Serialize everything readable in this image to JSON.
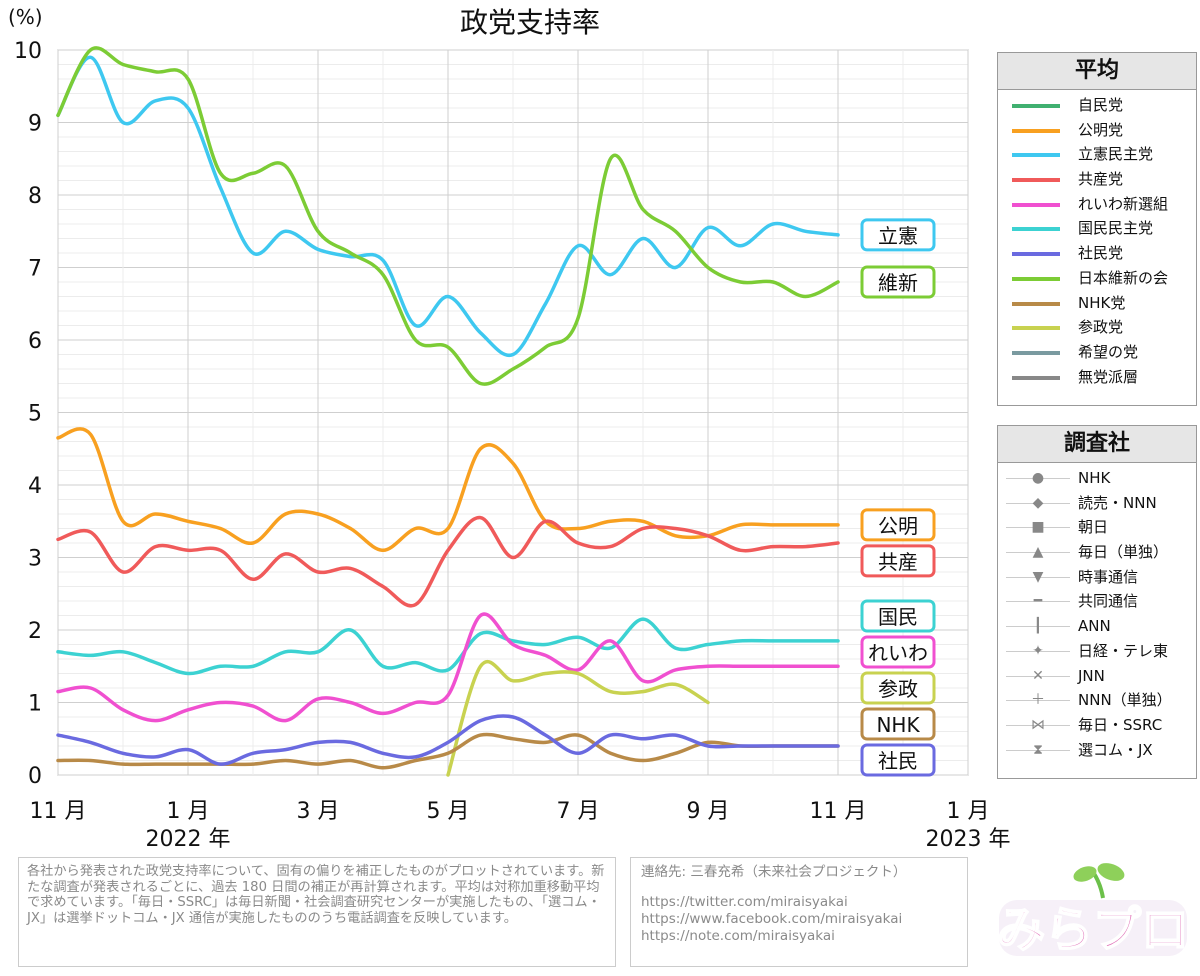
{
  "chart_data": {
    "type": "line",
    "title": "政党支持率",
    "ylabel": "(%)",
    "ylim": [
      0,
      10
    ],
    "yticks": [
      "0",
      "1",
      "2",
      "3",
      "4",
      "5",
      "6",
      "7",
      "8",
      "9",
      "10"
    ],
    "x_months": [
      "11 月",
      "1 月",
      "3 月",
      "5 月",
      "7 月",
      "9 月",
      "11 月",
      "1 月"
    ],
    "x_years": [
      "2022 年",
      "2023 年"
    ],
    "x": [
      0,
      0.5,
      1,
      1.5,
      2,
      2.5,
      3,
      3.5,
      4,
      4.5,
      5,
      5.5,
      6,
      6.5,
      7,
      7.5,
      8,
      8.5,
      9,
      9.5,
      10,
      10.5,
      11,
      11.5,
      12
    ],
    "grid": true,
    "series": [
      {
        "name": "立憲民主党",
        "color": "#3ec8f0",
        "tag": "立憲",
        "y": [
          9.1,
          9.9,
          9.0,
          9.3,
          9.2,
          8.1,
          7.2,
          7.5,
          7.25,
          7.15,
          7.1,
          6.2,
          6.6,
          6.1,
          5.8,
          6.5,
          7.3,
          6.9,
          7.4,
          7.0,
          7.55,
          7.3,
          7.6,
          7.5,
          7.45
        ]
      },
      {
        "name": "日本維新の会",
        "color": "#7ccc35",
        "tag": "維新",
        "y": [
          9.1,
          10.0,
          9.8,
          9.7,
          9.6,
          8.3,
          8.3,
          8.4,
          7.5,
          7.2,
          6.9,
          6.0,
          5.9,
          5.4,
          5.6,
          5.9,
          6.3,
          8.5,
          7.8,
          7.5,
          7.0,
          6.8,
          6.8,
          6.6,
          6.8
        ]
      },
      {
        "name": "公明党",
        "color": "#f8a020",
        "tag": "公明",
        "y": [
          4.65,
          4.7,
          3.5,
          3.6,
          3.5,
          3.4,
          3.2,
          3.6,
          3.6,
          3.4,
          3.1,
          3.4,
          3.4,
          4.5,
          4.3,
          3.5,
          3.4,
          3.5,
          3.5,
          3.3,
          3.3,
          3.45,
          3.45,
          3.45,
          3.45
        ]
      },
      {
        "name": "共産党",
        "color": "#f05a5a",
        "tag": "共産",
        "y": [
          3.25,
          3.35,
          2.8,
          3.15,
          3.1,
          3.1,
          2.7,
          3.05,
          2.8,
          2.85,
          2.6,
          2.35,
          3.1,
          3.55,
          3.0,
          3.5,
          3.2,
          3.15,
          3.4,
          3.4,
          3.3,
          3.1,
          3.15,
          3.15,
          3.2
        ]
      },
      {
        "name": "国民民主党",
        "color": "#3cd2d2",
        "tag": "国民",
        "y": [
          1.7,
          1.65,
          1.7,
          1.55,
          1.4,
          1.5,
          1.5,
          1.7,
          1.7,
          2.0,
          1.5,
          1.55,
          1.45,
          1.95,
          1.85,
          1.8,
          1.9,
          1.75,
          2.15,
          1.75,
          1.8,
          1.85,
          1.85,
          1.85,
          1.85
        ]
      },
      {
        "name": "れいわ新選組",
        "color": "#f050d0",
        "tag": "れいわ",
        "y": [
          1.15,
          1.2,
          0.9,
          0.75,
          0.9,
          1.0,
          0.95,
          0.75,
          1.05,
          1.0,
          0.85,
          1.0,
          1.1,
          2.2,
          1.8,
          1.65,
          1.45,
          1.85,
          1.3,
          1.45,
          1.5,
          1.5,
          1.5,
          1.5,
          1.5
        ]
      },
      {
        "name": "参政党",
        "color": "#c8d250",
        "tag": "参政",
        "y": [
          null,
          null,
          null,
          null,
          null,
          null,
          null,
          null,
          null,
          null,
          null,
          null,
          0.0,
          1.5,
          1.3,
          1.4,
          1.4,
          1.15,
          1.15,
          1.25,
          1.0,
          null,
          null,
          null,
          null
        ]
      },
      {
        "name": "NHK党",
        "color": "#b88a48",
        "tag": "NHK",
        "y": [
          0.2,
          0.2,
          0.15,
          0.15,
          0.15,
          0.15,
          0.15,
          0.2,
          0.15,
          0.2,
          0.1,
          0.2,
          0.3,
          0.55,
          0.5,
          0.45,
          0.55,
          0.3,
          0.2,
          0.3,
          0.45,
          0.4,
          0.4,
          0.4,
          0.4
        ]
      },
      {
        "name": "社民党",
        "color": "#6a6ae0",
        "tag": "社民",
        "y": [
          0.55,
          0.45,
          0.3,
          0.25,
          0.35,
          0.15,
          0.3,
          0.35,
          0.45,
          0.45,
          0.3,
          0.25,
          0.45,
          0.75,
          0.8,
          0.55,
          0.3,
          0.55,
          0.5,
          0.55,
          0.4,
          0.4,
          0.4,
          0.4,
          0.4
        ]
      }
    ]
  },
  "legend_avg": {
    "title": "平均",
    "items": [
      {
        "label": "自民党",
        "color": "#40b070"
      },
      {
        "label": "公明党",
        "color": "#f8a020"
      },
      {
        "label": "立憲民主党",
        "color": "#3ec8f0"
      },
      {
        "label": "共産党",
        "color": "#f05a5a"
      },
      {
        "label": "れいわ新選組",
        "color": "#f050d0"
      },
      {
        "label": "国民民主党",
        "color": "#3cd2d2"
      },
      {
        "label": "社民党",
        "color": "#6a6ae0"
      },
      {
        "label": "日本維新の会",
        "color": "#7ccc35"
      },
      {
        "label": "NHK党",
        "color": "#b88a48"
      },
      {
        "label": "参政党",
        "color": "#c8d250"
      },
      {
        "label": "希望の党",
        "color": "#7a9aa0"
      },
      {
        "label": "無党派層",
        "color": "#888888"
      }
    ]
  },
  "legend_pollster": {
    "title": "調査社",
    "items": [
      {
        "label": "NHK",
        "marker": "●"
      },
      {
        "label": "読売・NNN",
        "marker": "◆"
      },
      {
        "label": "朝日",
        "marker": "■"
      },
      {
        "label": "毎日（単独）",
        "marker": "▲"
      },
      {
        "label": "時事通信",
        "marker": "▼"
      },
      {
        "label": "共同通信",
        "marker": "━"
      },
      {
        "label": "ANN",
        "marker": "┃"
      },
      {
        "label": "日経・テレ東",
        "marker": "✦"
      },
      {
        "label": "JNN",
        "marker": "✕"
      },
      {
        "label": "NNN（単独）",
        "marker": "＋"
      },
      {
        "label": "毎日・SSRC",
        "marker": "⋈"
      },
      {
        "label": "選コム・JX",
        "marker": "⧗"
      }
    ]
  },
  "note": {
    "text": "各社から発表された政党支持率について、固有の偏りを補正したものがプロットされています。新たな調査が発表されるごとに、過去 180 日間の補正が再計算されます。平均は対称加重移動平均で求めています。「毎日・SSRC」は毎日新聞・社会調査研究センターが実施したもの、「選コム・JX」は選挙ドットコム・JX 通信が実施したもののうち電話調査を反映しています。"
  },
  "contact": {
    "label": "連絡先: 三春充希（未来社会プロジェクト）",
    "links": [
      "https://twitter.com/miraisyakai",
      "https://www.facebook.com/miraisyakai",
      "https://note.com/miraisyakai"
    ]
  },
  "logo": {
    "text": "みらプロ"
  }
}
